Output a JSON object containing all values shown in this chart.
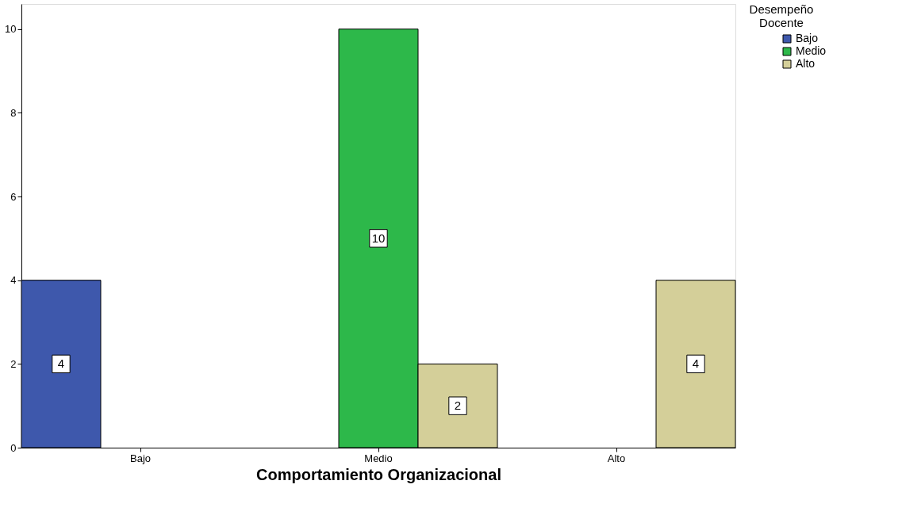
{
  "chart_data": {
    "type": "bar",
    "xlabel": "Comportamiento Organizacional",
    "legend_title": "Desempeño Docente",
    "categories": [
      "Bajo",
      "Medio",
      "Alto"
    ],
    "series": [
      {
        "name": "Bajo",
        "color": "#3e58ac",
        "values": [
          4,
          null,
          null
        ]
      },
      {
        "name": "Medio",
        "color": "#2db84a",
        "values": [
          null,
          10,
          null
        ]
      },
      {
        "name": "Alto",
        "color": "#d4cf99",
        "values": [
          null,
          2,
          4
        ]
      }
    ],
    "ylim": [
      0,
      10.6
    ],
    "yticks": [
      0,
      2,
      4,
      6,
      8,
      10
    ],
    "grid": false,
    "legend": "top right",
    "data_labels": true
  }
}
